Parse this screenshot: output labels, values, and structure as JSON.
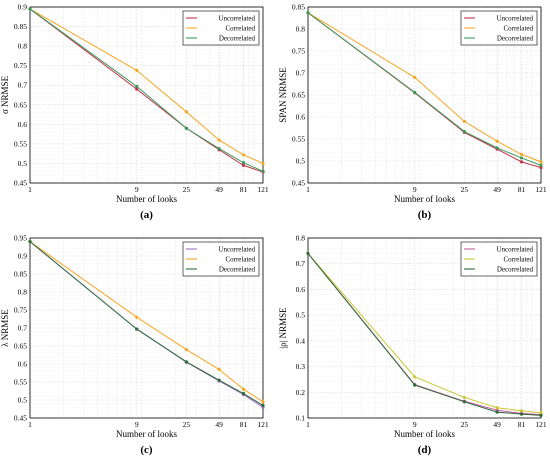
{
  "chart_data": [
    {
      "type": "line",
      "panel_label": "(a)",
      "xlabel": "Number of looks",
      "ylabel": "σ NRMSE",
      "x": [
        1,
        9,
        25,
        49,
        81,
        121
      ],
      "xticks": [
        "1",
        "9",
        "25",
        "49",
        "81",
        "121"
      ],
      "ylim": [
        0.45,
        0.9
      ],
      "yticks": [
        "0.45",
        "0.5",
        "0.55",
        "0.6",
        "0.65",
        "0.7",
        "0.75",
        "0.8",
        "0.85",
        "0.9"
      ],
      "grid": true,
      "legend": "top-right",
      "series": [
        {
          "name": "Uncorrelated",
          "color": "#c8324b",
          "values": [
            0.895,
            0.69,
            0.59,
            0.535,
            0.495,
            0.478
          ]
        },
        {
          "name": "Correlated",
          "color": "#f5a623",
          "values": [
            0.895,
            0.738,
            0.632,
            0.56,
            0.522,
            0.5
          ]
        },
        {
          "name": "Decorrelated",
          "color": "#3a9a5a",
          "values": [
            0.895,
            0.697,
            0.59,
            0.538,
            0.502,
            0.48
          ]
        }
      ]
    },
    {
      "type": "line",
      "panel_label": "(b)",
      "xlabel": "Number of looks",
      "ylabel": "SPAN NRMSE",
      "x": [
        1,
        9,
        25,
        49,
        81,
        121
      ],
      "xticks": [
        "1",
        "9",
        "25",
        "49",
        "81",
        "121"
      ],
      "ylim": [
        0.45,
        0.85
      ],
      "yticks": [
        "0.45",
        "0.5",
        "0.55",
        "0.6",
        "0.65",
        "0.7",
        "0.75",
        "0.8",
        "0.85"
      ],
      "grid": true,
      "legend": "top-right",
      "series": [
        {
          "name": "Uncorrelated",
          "color": "#c8324b",
          "values": [
            0.837,
            0.655,
            0.565,
            0.527,
            0.498,
            0.485
          ]
        },
        {
          "name": "Correlated",
          "color": "#f5a623",
          "values": [
            0.837,
            0.69,
            0.59,
            0.545,
            0.515,
            0.498
          ]
        },
        {
          "name": "Decorrelated",
          "color": "#3a9a5a",
          "values": [
            0.837,
            0.656,
            0.567,
            0.53,
            0.507,
            0.49
          ]
        }
      ]
    },
    {
      "type": "line",
      "panel_label": "(c)",
      "xlabel": "Number of looks",
      "ylabel": "λ NRMSE",
      "x": [
        1,
        9,
        25,
        49,
        81,
        121
      ],
      "xticks": [
        "1",
        "9",
        "25",
        "49",
        "81",
        "121"
      ],
      "ylim": [
        0.45,
        0.95
      ],
      "yticks": [
        "0.45",
        "0.5",
        "0.55",
        "0.6",
        "0.65",
        "0.7",
        "0.75",
        "0.8",
        "0.85",
        "0.9",
        "0.95"
      ],
      "grid": true,
      "legend": "top-right",
      "series": [
        {
          "name": "Uncorrelated",
          "color": "#9b6fc7",
          "values": [
            0.94,
            0.697,
            0.605,
            0.553,
            0.515,
            0.48
          ]
        },
        {
          "name": "Correlated",
          "color": "#f5a623",
          "values": [
            0.94,
            0.73,
            0.64,
            0.585,
            0.53,
            0.495
          ]
        },
        {
          "name": "Decorrelated",
          "color": "#2e6b3a",
          "values": [
            0.94,
            0.697,
            0.606,
            0.555,
            0.518,
            0.485
          ]
        }
      ]
    },
    {
      "type": "line",
      "panel_label": "(d)",
      "xlabel": "Number of looks",
      "ylabel": "|ρ| NRMSE",
      "x": [
        1,
        9,
        25,
        49,
        81,
        121
      ],
      "xticks": [
        "1",
        "9",
        "25",
        "49",
        "81",
        "121"
      ],
      "ylim": [
        0.1,
        0.8
      ],
      "yticks": [
        "0.1",
        "0.2",
        "0.3",
        "0.4",
        "0.5",
        "0.6",
        "0.7",
        "0.8"
      ],
      "grid": true,
      "legend": "top-right",
      "series": [
        {
          "name": "Uncorrelated",
          "color": "#c85aa0",
          "values": [
            0.74,
            0.23,
            0.165,
            0.13,
            0.118,
            0.113
          ]
        },
        {
          "name": "Correlated",
          "color": "#c9c832",
          "values": [
            0.74,
            0.26,
            0.18,
            0.14,
            0.128,
            0.12
          ]
        },
        {
          "name": "Decorrelated",
          "color": "#2e6b3a",
          "values": [
            0.74,
            0.228,
            0.163,
            0.123,
            0.115,
            0.11
          ]
        }
      ]
    }
  ]
}
